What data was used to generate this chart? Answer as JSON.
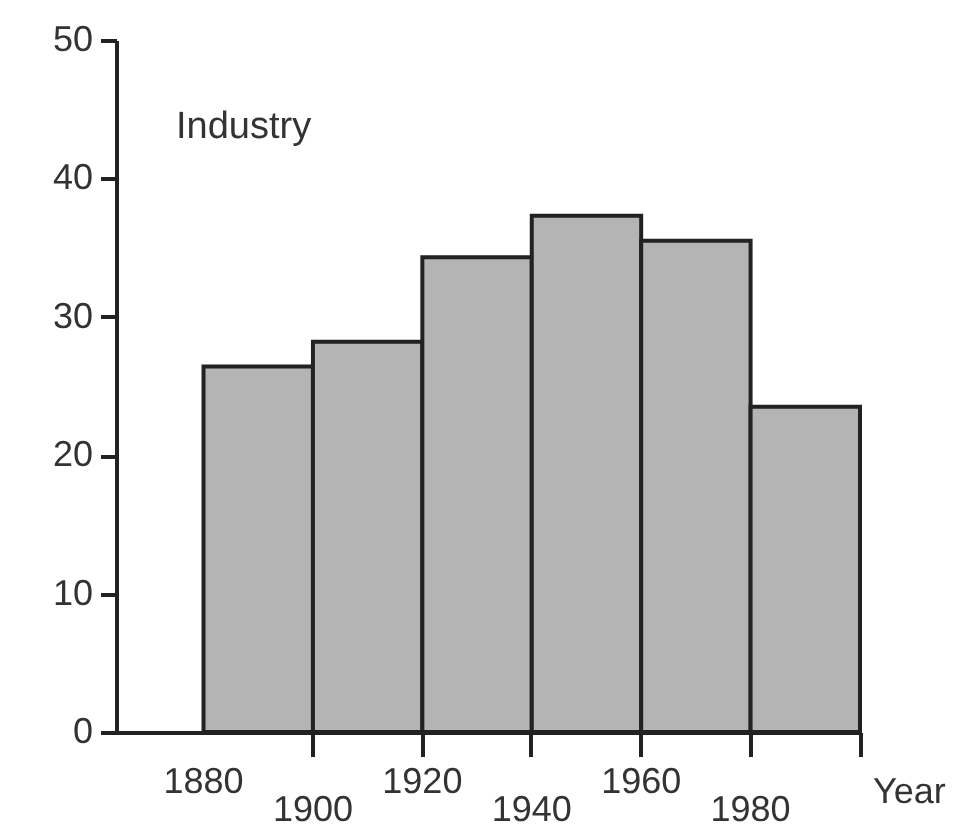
{
  "chart_data": {
    "type": "bar",
    "title": "Industry",
    "xlabel": "Year",
    "categories": [
      "1880",
      "1900",
      "1920",
      "1940",
      "1960",
      "1980"
    ],
    "values": [
      26.4,
      28.2,
      34.3,
      37.3,
      35.5,
      23.5
    ],
    "color": "#b4b4b4",
    "ylim": [
      0,
      50
    ],
    "yticks": [
      0,
      10,
      20,
      30,
      40,
      50
    ],
    "grid": false
  }
}
